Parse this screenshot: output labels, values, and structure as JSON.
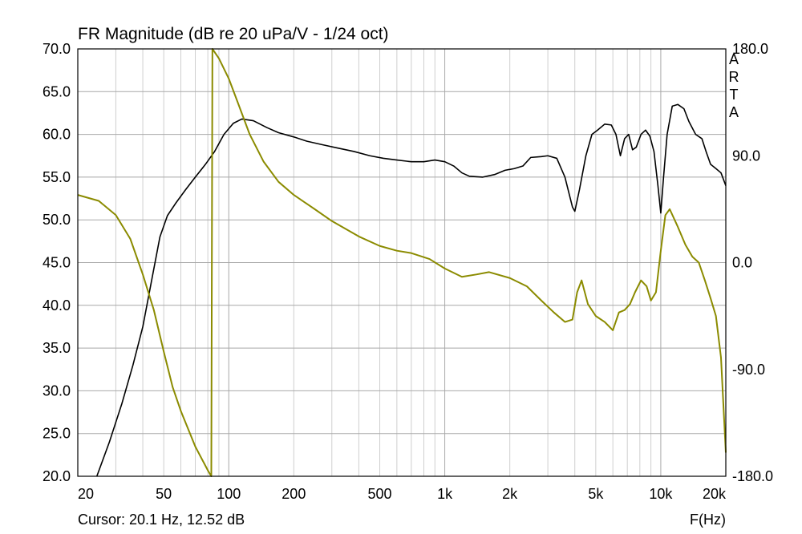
{
  "chart_data": {
    "type": "line",
    "title": "FR Magnitude (dB re 20 uPa/V - 1/24 oct)",
    "xlabel": "F(Hz)",
    "x_scale": "log",
    "xlim": [
      20,
      20000
    ],
    "ylim": [
      20,
      70
    ],
    "y2lim": [
      -180,
      180
    ],
    "x_ticks": [
      {
        "value": 20,
        "label": "20"
      },
      {
        "value": 50,
        "label": "50"
      },
      {
        "value": 100,
        "label": "100"
      },
      {
        "value": 200,
        "label": "200"
      },
      {
        "value": 500,
        "label": "500"
      },
      {
        "value": 1000,
        "label": "1k"
      },
      {
        "value": 2000,
        "label": "2k"
      },
      {
        "value": 5000,
        "label": "5k"
      },
      {
        "value": 10000,
        "label": "10k"
      },
      {
        "value": 20000,
        "label": "20k"
      }
    ],
    "y_ticks": [
      "70.0",
      "65.0",
      "60.0",
      "55.0",
      "50.0",
      "45.0",
      "40.0",
      "35.0",
      "30.0",
      "25.0",
      "20.0"
    ],
    "y2_ticks": [
      "180.0",
      "90.0",
      "0.0",
      "-90.0",
      "-180.0"
    ],
    "side_text": [
      "A",
      "R",
      "T",
      "A"
    ],
    "cursor_text": "Cursor: 20.1 Hz, 12.52 dB",
    "grid": true,
    "series": [
      {
        "axis": "left",
        "color": "#000000",
        "points": [
          [
            24.5,
            20
          ],
          [
            28,
            24
          ],
          [
            32,
            28.5
          ],
          [
            36,
            33
          ],
          [
            40,
            37.5
          ],
          [
            44,
            43
          ],
          [
            48,
            48
          ],
          [
            52,
            50.5
          ],
          [
            57,
            52
          ],
          [
            63,
            53.5
          ],
          [
            70,
            55
          ],
          [
            78,
            56.5
          ],
          [
            86,
            58
          ],
          [
            95,
            60
          ],
          [
            105,
            61.3
          ],
          [
            115,
            61.8
          ],
          [
            130,
            61.6
          ],
          [
            150,
            60.8
          ],
          [
            170,
            60.2
          ],
          [
            200,
            59.7
          ],
          [
            230,
            59.2
          ],
          [
            270,
            58.8
          ],
          [
            320,
            58.4
          ],
          [
            380,
            58
          ],
          [
            450,
            57.5
          ],
          [
            520,
            57.2
          ],
          [
            600,
            57
          ],
          [
            700,
            56.8
          ],
          [
            800,
            56.8
          ],
          [
            900,
            57
          ],
          [
            1000,
            56.8
          ],
          [
            1100,
            56.3
          ],
          [
            1200,
            55.5
          ],
          [
            1300,
            55.1
          ],
          [
            1500,
            55
          ],
          [
            1700,
            55.3
          ],
          [
            1900,
            55.8
          ],
          [
            2100,
            56
          ],
          [
            2300,
            56.3
          ],
          [
            2500,
            57.3
          ],
          [
            2800,
            57.4
          ],
          [
            3000,
            57.5
          ],
          [
            3300,
            57.2
          ],
          [
            3600,
            55
          ],
          [
            3900,
            51.5
          ],
          [
            4000,
            51
          ],
          [
            4200,
            53.5
          ],
          [
            4500,
            57.5
          ],
          [
            4800,
            60
          ],
          [
            5100,
            60.5
          ],
          [
            5500,
            61.2
          ],
          [
            5900,
            61.1
          ],
          [
            6200,
            60
          ],
          [
            6500,
            57.5
          ],
          [
            6800,
            59.5
          ],
          [
            7100,
            60
          ],
          [
            7400,
            58.2
          ],
          [
            7700,
            58.5
          ],
          [
            8100,
            60
          ],
          [
            8500,
            60.5
          ],
          [
            8900,
            59.8
          ],
          [
            9300,
            58
          ],
          [
            9700,
            54
          ],
          [
            10000,
            50.8
          ],
          [
            10300,
            55
          ],
          [
            10700,
            60
          ],
          [
            11300,
            63.3
          ],
          [
            12000,
            63.5
          ],
          [
            12800,
            63
          ],
          [
            13500,
            61.5
          ],
          [
            14500,
            60
          ],
          [
            15500,
            59.5
          ],
          [
            16200,
            58
          ],
          [
            17000,
            56.5
          ],
          [
            18000,
            56
          ],
          [
            19000,
            55.5
          ],
          [
            20000,
            54
          ]
        ]
      },
      {
        "axis": "right",
        "color": "#8b8b00",
        "points": [
          [
            20,
            57
          ],
          [
            25,
            52
          ],
          [
            30,
            40
          ],
          [
            35,
            20
          ],
          [
            40,
            -10
          ],
          [
            45,
            -40
          ],
          [
            50,
            -75
          ],
          [
            55,
            -105
          ],
          [
            60,
            -125
          ],
          [
            70,
            -155
          ],
          [
            80,
            -175
          ],
          [
            83,
            -180
          ],
          [
            84,
            180
          ],
          [
            90,
            172
          ],
          [
            100,
            155
          ],
          [
            110,
            135
          ],
          [
            125,
            108
          ],
          [
            145,
            85
          ],
          [
            170,
            68
          ],
          [
            200,
            57
          ],
          [
            250,
            45
          ],
          [
            300,
            35
          ],
          [
            400,
            22
          ],
          [
            500,
            14
          ],
          [
            600,
            10
          ],
          [
            700,
            8
          ],
          [
            850,
            3
          ],
          [
            1000,
            -5
          ],
          [
            1200,
            -12
          ],
          [
            1400,
            -10
          ],
          [
            1600,
            -8
          ],
          [
            2000,
            -13
          ],
          [
            2400,
            -20
          ],
          [
            2800,
            -32
          ],
          [
            3200,
            -42
          ],
          [
            3600,
            -50
          ],
          [
            3900,
            -48
          ],
          [
            4100,
            -25
          ],
          [
            4300,
            -15
          ],
          [
            4600,
            -35
          ],
          [
            5000,
            -45
          ],
          [
            5500,
            -50
          ],
          [
            6000,
            -57
          ],
          [
            6400,
            -42
          ],
          [
            6800,
            -40
          ],
          [
            7200,
            -35
          ],
          [
            7600,
            -25
          ],
          [
            8100,
            -15
          ],
          [
            8600,
            -20
          ],
          [
            9000,
            -32
          ],
          [
            9500,
            -25
          ],
          [
            10000,
            10
          ],
          [
            10500,
            40
          ],
          [
            11000,
            45
          ],
          [
            12000,
            30
          ],
          [
            13000,
            15
          ],
          [
            14000,
            5
          ],
          [
            15000,
            0
          ],
          [
            16000,
            -15
          ],
          [
            17000,
            -30
          ],
          [
            18000,
            -45
          ],
          [
            19000,
            -80
          ],
          [
            20000,
            -160
          ]
        ]
      }
    ]
  }
}
